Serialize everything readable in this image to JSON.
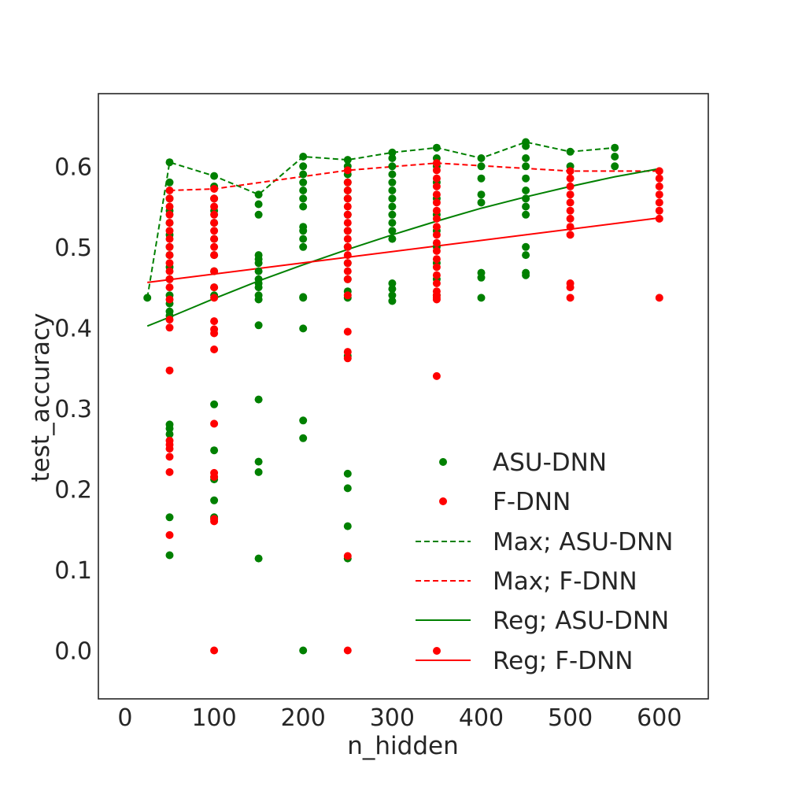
{
  "chart_data": {
    "type": "scatter",
    "xlabel": "n_hidden",
    "ylabel": "test_accuracy",
    "xlim": [
      -30,
      655
    ],
    "ylim": [
      -0.06,
      0.69
    ],
    "xticks": [
      "0",
      "100",
      "200",
      "300",
      "400",
      "500",
      "600"
    ],
    "yticks": [
      "0.0",
      "0.1",
      "0.2",
      "0.3",
      "0.4",
      "0.5",
      "0.6"
    ],
    "grid": false,
    "legend_position": "lower-right",
    "legend": [
      {
        "label": "ASU-DNN",
        "kind": "marker",
        "color": "#008000"
      },
      {
        "label": "F-DNN",
        "kind": "marker",
        "color": "#ff0000"
      },
      {
        "label": "Max; ASU-DNN",
        "kind": "dashed",
        "color": "#008000"
      },
      {
        "label": "Max; F-DNN",
        "kind": "dashed",
        "color": "#ff0000"
      },
      {
        "label": "Reg; ASU-DNN",
        "kind": "solid",
        "color": "#008000"
      },
      {
        "label": "Reg; F-DNN",
        "kind": "solid",
        "color": "#ff0000"
      }
    ],
    "scatter_series": [
      {
        "name": "ASU-DNN",
        "color": "#008000",
        "points": [
          [
            25,
            0.437
          ],
          [
            50,
            0.605
          ],
          [
            50,
            0.58
          ],
          [
            50,
            0.56
          ],
          [
            50,
            0.545
          ],
          [
            50,
            0.53
          ],
          [
            50,
            0.515
          ],
          [
            50,
            0.5
          ],
          [
            50,
            0.49
          ],
          [
            50,
            0.475
          ],
          [
            50,
            0.46
          ],
          [
            50,
            0.44
          ],
          [
            50,
            0.43
          ],
          [
            50,
            0.42
          ],
          [
            50,
            0.415
          ],
          [
            50,
            0.28
          ],
          [
            50,
            0.275
          ],
          [
            50,
            0.268
          ],
          [
            50,
            0.165
          ],
          [
            50,
            0.118
          ],
          [
            100,
            0.588
          ],
          [
            100,
            0.575
          ],
          [
            100,
            0.56
          ],
          [
            100,
            0.545
          ],
          [
            100,
            0.53
          ],
          [
            100,
            0.51
          ],
          [
            100,
            0.49
          ],
          [
            100,
            0.47
          ],
          [
            100,
            0.45
          ],
          [
            100,
            0.44
          ],
          [
            100,
            0.305
          ],
          [
            100,
            0.248
          ],
          [
            100,
            0.215
          ],
          [
            100,
            0.212
          ],
          [
            100,
            0.186
          ],
          [
            100,
            0.165
          ],
          [
            100,
            0.163
          ],
          [
            150,
            0.565
          ],
          [
            150,
            0.553
          ],
          [
            150,
            0.54
          ],
          [
            150,
            0.49
          ],
          [
            150,
            0.485
          ],
          [
            150,
            0.48
          ],
          [
            150,
            0.47
          ],
          [
            150,
            0.46
          ],
          [
            150,
            0.455
          ],
          [
            150,
            0.45
          ],
          [
            150,
            0.44
          ],
          [
            150,
            0.435
          ],
          [
            150,
            0.403
          ],
          [
            150,
            0.311
          ],
          [
            150,
            0.234
          ],
          [
            150,
            0.221
          ],
          [
            150,
            0.114
          ],
          [
            200,
            0.612
          ],
          [
            200,
            0.6
          ],
          [
            200,
            0.59
          ],
          [
            200,
            0.58
          ],
          [
            200,
            0.57
          ],
          [
            200,
            0.56
          ],
          [
            200,
            0.55
          ],
          [
            200,
            0.525
          ],
          [
            200,
            0.52
          ],
          [
            200,
            0.51
          ],
          [
            200,
            0.5
          ],
          [
            200,
            0.438
          ],
          [
            200,
            0.437
          ],
          [
            200,
            0.399
          ],
          [
            200,
            0.285
          ],
          [
            200,
            0.263
          ],
          [
            200,
            0.0
          ],
          [
            250,
            0.608
          ],
          [
            250,
            0.6
          ],
          [
            250,
            0.59
          ],
          [
            250,
            0.58
          ],
          [
            250,
            0.57
          ],
          [
            250,
            0.56
          ],
          [
            250,
            0.54
          ],
          [
            250,
            0.52
          ],
          [
            250,
            0.5
          ],
          [
            250,
            0.48
          ],
          [
            250,
            0.46
          ],
          [
            250,
            0.445
          ],
          [
            250,
            0.437
          ],
          [
            250,
            0.365
          ],
          [
            250,
            0.219
          ],
          [
            250,
            0.201
          ],
          [
            250,
            0.154
          ],
          [
            250,
            0.114
          ],
          [
            300,
            0.617
          ],
          [
            300,
            0.61
          ],
          [
            300,
            0.6
          ],
          [
            300,
            0.59
          ],
          [
            300,
            0.58
          ],
          [
            300,
            0.57
          ],
          [
            300,
            0.56
          ],
          [
            300,
            0.55
          ],
          [
            300,
            0.54
          ],
          [
            300,
            0.53
          ],
          [
            300,
            0.52
          ],
          [
            300,
            0.51
          ],
          [
            300,
            0.455
          ],
          [
            300,
            0.448
          ],
          [
            300,
            0.44
          ],
          [
            300,
            0.433
          ],
          [
            350,
            0.623
          ],
          [
            350,
            0.61
          ],
          [
            350,
            0.6
          ],
          [
            350,
            0.58
          ],
          [
            350,
            0.56
          ],
          [
            350,
            0.54
          ],
          [
            350,
            0.52
          ],
          [
            350,
            0.5
          ],
          [
            350,
            0.48
          ],
          [
            350,
            0.46
          ],
          [
            350,
            0.44
          ],
          [
            400,
            0.61
          ],
          [
            400,
            0.6
          ],
          [
            400,
            0.585
          ],
          [
            400,
            0.565
          ],
          [
            400,
            0.555
          ],
          [
            400,
            0.468
          ],
          [
            400,
            0.462
          ],
          [
            400,
            0.437
          ],
          [
            450,
            0.63
          ],
          [
            450,
            0.625
          ],
          [
            450,
            0.61
          ],
          [
            450,
            0.6
          ],
          [
            450,
            0.585
          ],
          [
            450,
            0.57
          ],
          [
            450,
            0.56
          ],
          [
            450,
            0.55
          ],
          [
            450,
            0.54
          ],
          [
            450,
            0.5
          ],
          [
            450,
            0.49
          ],
          [
            450,
            0.468
          ],
          [
            450,
            0.465
          ],
          [
            500,
            0.618
          ],
          [
            500,
            0.6
          ],
          [
            550,
            0.623
          ],
          [
            550,
            0.612
          ],
          [
            550,
            0.6
          ]
        ]
      },
      {
        "name": "F-DNN",
        "color": "#ff0000",
        "points": [
          [
            50,
            0.57
          ],
          [
            50,
            0.56
          ],
          [
            50,
            0.55
          ],
          [
            50,
            0.54
          ],
          [
            50,
            0.53
          ],
          [
            50,
            0.52
          ],
          [
            50,
            0.51
          ],
          [
            50,
            0.5
          ],
          [
            50,
            0.49
          ],
          [
            50,
            0.48
          ],
          [
            50,
            0.47
          ],
          [
            50,
            0.46
          ],
          [
            50,
            0.45
          ],
          [
            50,
            0.435
          ],
          [
            50,
            0.41
          ],
          [
            50,
            0.4
          ],
          [
            50,
            0.347
          ],
          [
            50,
            0.26
          ],
          [
            50,
            0.255
          ],
          [
            50,
            0.25
          ],
          [
            50,
            0.24
          ],
          [
            50,
            0.221
          ],
          [
            50,
            0.143
          ],
          [
            100,
            0.572
          ],
          [
            100,
            0.56
          ],
          [
            100,
            0.55
          ],
          [
            100,
            0.54
          ],
          [
            100,
            0.53
          ],
          [
            100,
            0.52
          ],
          [
            100,
            0.51
          ],
          [
            100,
            0.5
          ],
          [
            100,
            0.49
          ],
          [
            100,
            0.47
          ],
          [
            100,
            0.45
          ],
          [
            100,
            0.437
          ],
          [
            100,
            0.408
          ],
          [
            100,
            0.398
          ],
          [
            100,
            0.393
          ],
          [
            100,
            0.373
          ],
          [
            100,
            0.281
          ],
          [
            100,
            0.22
          ],
          [
            100,
            0.215
          ],
          [
            100,
            0.163
          ],
          [
            100,
            0.16
          ],
          [
            100,
            0.0
          ],
          [
            250,
            0.595
          ],
          [
            250,
            0.58
          ],
          [
            250,
            0.57
          ],
          [
            250,
            0.56
          ],
          [
            250,
            0.55
          ],
          [
            250,
            0.54
          ],
          [
            250,
            0.53
          ],
          [
            250,
            0.52
          ],
          [
            250,
            0.51
          ],
          [
            250,
            0.5
          ],
          [
            250,
            0.49
          ],
          [
            250,
            0.48
          ],
          [
            250,
            0.47
          ],
          [
            250,
            0.46
          ],
          [
            250,
            0.44
          ],
          [
            250,
            0.395
          ],
          [
            250,
            0.37
          ],
          [
            250,
            0.362
          ],
          [
            250,
            0.117
          ],
          [
            250,
            0.0
          ],
          [
            350,
            0.604
          ],
          [
            350,
            0.595
          ],
          [
            350,
            0.585
          ],
          [
            350,
            0.575
          ],
          [
            350,
            0.565
          ],
          [
            350,
            0.555
          ],
          [
            350,
            0.545
          ],
          [
            350,
            0.535
          ],
          [
            350,
            0.525
          ],
          [
            350,
            0.515
          ],
          [
            350,
            0.505
          ],
          [
            350,
            0.495
          ],
          [
            350,
            0.485
          ],
          [
            350,
            0.475
          ],
          [
            350,
            0.465
          ],
          [
            350,
            0.455
          ],
          [
            350,
            0.445
          ],
          [
            350,
            0.44
          ],
          [
            350,
            0.437
          ],
          [
            350,
            0.435
          ],
          [
            350,
            0.34
          ],
          [
            500,
            0.594
          ],
          [
            500,
            0.585
          ],
          [
            500,
            0.575
          ],
          [
            500,
            0.565
          ],
          [
            500,
            0.555
          ],
          [
            500,
            0.545
          ],
          [
            500,
            0.535
          ],
          [
            500,
            0.525
          ],
          [
            500,
            0.515
          ],
          [
            500,
            0.455
          ],
          [
            500,
            0.45
          ],
          [
            500,
            0.437
          ],
          [
            600,
            0.594
          ],
          [
            600,
            0.585
          ],
          [
            600,
            0.575
          ],
          [
            600,
            0.565
          ],
          [
            600,
            0.555
          ],
          [
            600,
            0.545
          ],
          [
            600,
            0.535
          ],
          [
            600,
            0.437
          ]
        ]
      }
    ],
    "line_series": [
      {
        "name": "Max; ASU-DNN",
        "color": "#008000",
        "style": "dashed",
        "x": [
          25,
          50,
          100,
          150,
          200,
          250,
          300,
          350,
          400,
          450,
          500,
          550
        ],
        "y": [
          0.437,
          0.605,
          0.588,
          0.565,
          0.612,
          0.608,
          0.617,
          0.623,
          0.61,
          0.63,
          0.618,
          0.623
        ]
      },
      {
        "name": "Max; F-DNN",
        "color": "#ff0000",
        "style": "dashed",
        "x": [
          50,
          100,
          250,
          350,
          500,
          600
        ],
        "y": [
          0.57,
          0.572,
          0.595,
          0.604,
          0.594,
          0.594
        ]
      },
      {
        "name": "Reg; ASU-DNN",
        "color": "#008000",
        "style": "solid",
        "x": [
          25,
          50,
          100,
          150,
          200,
          250,
          300,
          350,
          400,
          450,
          500,
          550,
          600
        ],
        "y": [
          0.402,
          0.413,
          0.436,
          0.458,
          0.478,
          0.497,
          0.515,
          0.532,
          0.548,
          0.562,
          0.575,
          0.587,
          0.597
        ]
      },
      {
        "name": "Reg; F-DNN",
        "color": "#ff0000",
        "style": "solid",
        "x": [
          25,
          600
        ],
        "y": [
          0.456,
          0.536
        ]
      }
    ]
  }
}
